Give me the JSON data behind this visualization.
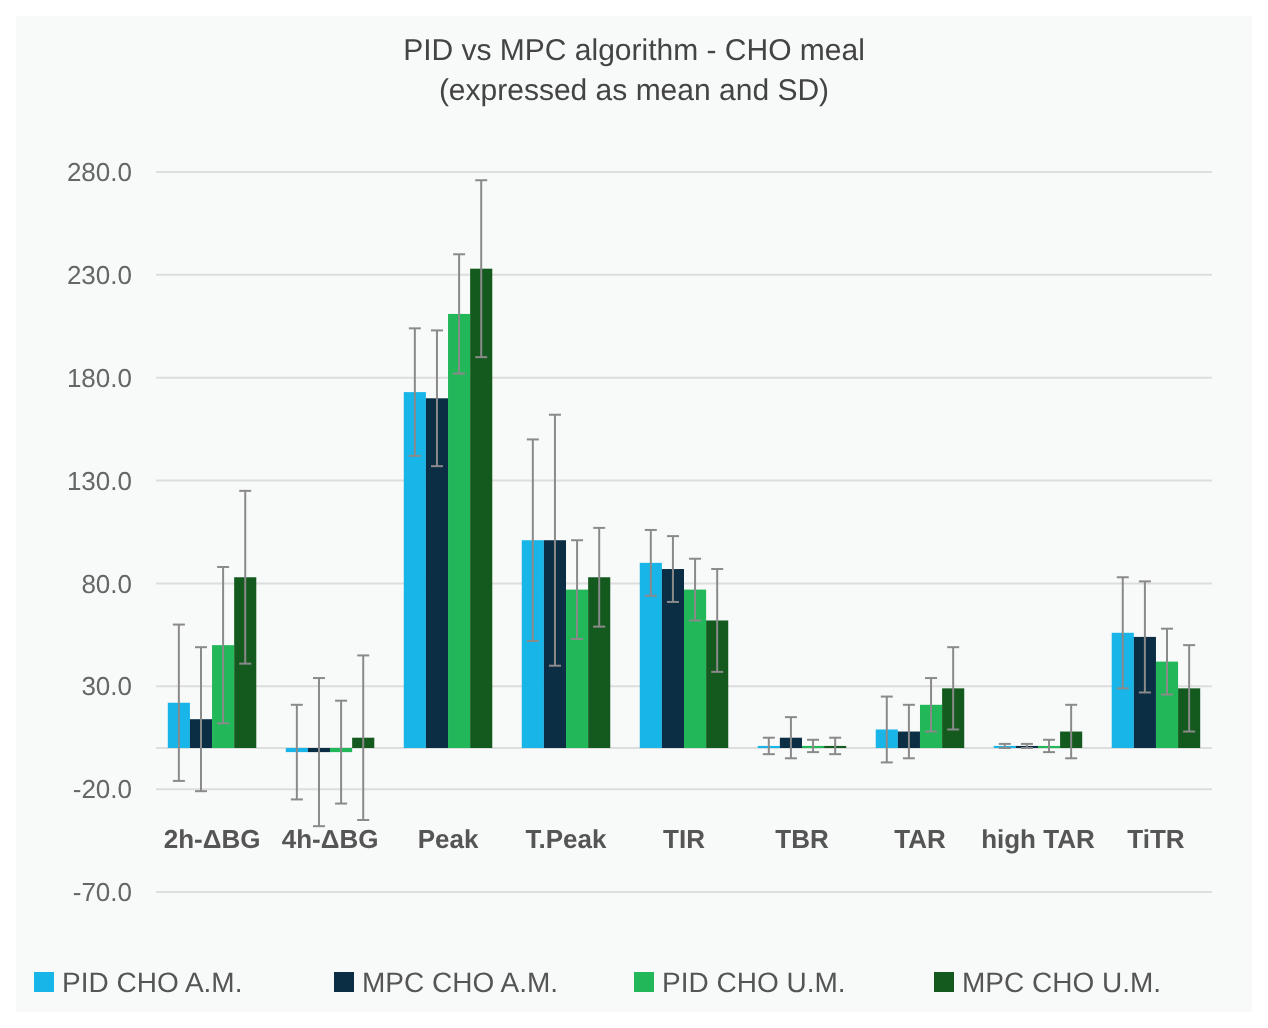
{
  "chart_data": {
    "type": "bar",
    "title": "PID vs MPC algorithm - CHO meal",
    "subtitle": "(expressed as mean and SD)",
    "categories": [
      "2h-ΔBG",
      "4h-ΔBG",
      "Peak",
      "T.Peak",
      "TIR",
      "TBR",
      "TAR",
      "high TAR",
      "TiTR"
    ],
    "series": [
      {
        "name": "PID CHO A.M.",
        "color": "#17b5e8",
        "values": [
          22,
          -2,
          173,
          101,
          90,
          1,
          9,
          1,
          56
        ],
        "errors": [
          38,
          23,
          31,
          49,
          16,
          4,
          16,
          1,
          27
        ]
      },
      {
        "name": "MPC CHO A.M.",
        "color": "#0b2e45",
        "values": [
          14,
          -2,
          170,
          101,
          87,
          5,
          8,
          1,
          54
        ],
        "errors": [
          35,
          36,
          33,
          61,
          16,
          10,
          13,
          1,
          27
        ]
      },
      {
        "name": "PID CHO U.M.",
        "color": "#22b85a",
        "values": [
          50,
          -2,
          211,
          77,
          77,
          1,
          21,
          1,
          42
        ],
        "errors": [
          38,
          25,
          29,
          24,
          15,
          3,
          13,
          3,
          16
        ]
      },
      {
        "name": "MPC CHO U.M.",
        "color": "#145a1f",
        "values": [
          83,
          5,
          233,
          83,
          62,
          1,
          29,
          8,
          29
        ],
        "errors": [
          42,
          40,
          43,
          24,
          25,
          4,
          20,
          13,
          21
        ]
      }
    ],
    "ylim": [
      -70,
      280
    ],
    "yticks": [
      {
        "value": -70,
        "label": "-70.0"
      },
      {
        "value": -20,
        "label": "-20.0"
      },
      {
        "value": 30,
        "label": "30.0"
      },
      {
        "value": 80,
        "label": "80.0"
      },
      {
        "value": 130,
        "label": "130.0"
      },
      {
        "value": 180,
        "label": "180.0"
      },
      {
        "value": 230,
        "label": "230.0"
      },
      {
        "value": 280,
        "label": "280.0"
      }
    ],
    "grid": "y",
    "legend": "bottom"
  }
}
